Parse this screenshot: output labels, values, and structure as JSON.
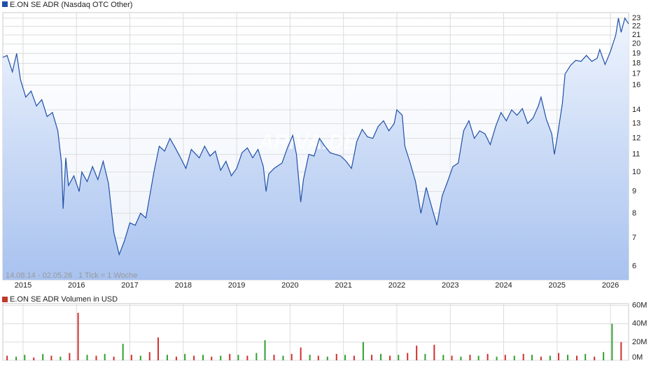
{
  "chart_data": [
    {
      "type": "line",
      "series": [
        {
          "name": "E.ON SE ADR (Nasdaq OTC Other)",
          "color": "#2050a8",
          "values": [
            18.6,
            18.8,
            17.2,
            19.0,
            16.5,
            15.0,
            15.5,
            14.3,
            14.8,
            13.5,
            13.8,
            12.5,
            10.5,
            8.2,
            10.8,
            9.3,
            9.8,
            9.0,
            10.0,
            9.5,
            10.3,
            9.6,
            10.6,
            9.4,
            7.2,
            6.4,
            6.9,
            7.6,
            7.5,
            8.0,
            7.8,
            10.0,
            11.5,
            11.2,
            12.0,
            11.4,
            10.8,
            10.2,
            11.3,
            10.8,
            11.5,
            10.9,
            11.2,
            10.1,
            10.6,
            9.8,
            10.2,
            11.1,
            11.4,
            10.8,
            11.3,
            10.3,
            9.0,
            9.9,
            10.2,
            10.5,
            11.4,
            12.2,
            11.0,
            8.5,
            9.6,
            11.0,
            10.9,
            12.0,
            11.5,
            11.1,
            11.0,
            10.9,
            10.6,
            10.2,
            11.8,
            12.6,
            12.1,
            12.0,
            12.8,
            13.2,
            12.5,
            13.0,
            14.0,
            13.6,
            11.5,
            10.5,
            9.5,
            8.0,
            9.2,
            8.3,
            7.5,
            8.8,
            9.5,
            10.3,
            10.5,
            12.5,
            13.2,
            12.0,
            12.5,
            12.3,
            11.6,
            12.8,
            13.8,
            13.2,
            14.0,
            13.6,
            14.1,
            13.0,
            13.4,
            14.3,
            15.0,
            13.3,
            12.3,
            11.0,
            12.0,
            14.5,
            17.0,
            17.8,
            18.3,
            18.2,
            18.8,
            18.2,
            18.5,
            19.4,
            17.9,
            19.2,
            21.0,
            23.0,
            21.3,
            23.0,
            22.3
          ]
        }
      ],
      "x": [
        2014.62,
        2014.7,
        2014.8,
        2014.88,
        2014.95,
        2015.05,
        2015.15,
        2015.25,
        2015.35,
        2015.45,
        2015.55,
        2015.65,
        2015.72,
        2015.75,
        2015.8,
        2015.85,
        2015.95,
        2016.05,
        2016.1,
        2016.2,
        2016.3,
        2016.4,
        2016.5,
        2016.6,
        2016.7,
        2016.8,
        2016.9,
        2017.0,
        2017.1,
        2017.2,
        2017.3,
        2017.45,
        2017.55,
        2017.65,
        2017.75,
        2017.85,
        2017.95,
        2018.05,
        2018.15,
        2018.3,
        2018.4,
        2018.5,
        2018.6,
        2018.7,
        2018.8,
        2018.9,
        2019.0,
        2019.1,
        2019.2,
        2019.3,
        2019.4,
        2019.5,
        2019.55,
        2019.6,
        2019.7,
        2019.85,
        2019.95,
        2020.05,
        2020.12,
        2020.2,
        2020.25,
        2020.35,
        2020.45,
        2020.55,
        2020.65,
        2020.75,
        2020.85,
        2020.95,
        2021.05,
        2021.15,
        2021.25,
        2021.35,
        2021.45,
        2021.55,
        2021.65,
        2021.75,
        2021.85,
        2021.95,
        2022.0,
        2022.1,
        2022.15,
        2022.25,
        2022.35,
        2022.45,
        2022.55,
        2022.65,
        2022.75,
        2022.85,
        2022.95,
        2023.05,
        2023.15,
        2023.25,
        2023.35,
        2023.45,
        2023.55,
        2023.65,
        2023.75,
        2023.85,
        2023.95,
        2024.05,
        2024.15,
        2024.25,
        2024.35,
        2024.45,
        2024.55,
        2024.65,
        2024.7,
        2024.8,
        2024.9,
        2024.95,
        2025.0,
        2025.1,
        2025.15,
        2025.25,
        2025.35,
        2025.45,
        2025.55,
        2025.65,
        2025.75,
        2025.8,
        2025.9,
        2026.0,
        2026.1,
        2026.15,
        2026.2,
        2026.27,
        2026.34
      ],
      "xlim": [
        2014.62,
        2026.34
      ],
      "xticks": [
        2015,
        2016,
        2017,
        2018,
        2019,
        2020,
        2021,
        2022,
        2023,
        2024,
        2025,
        2026
      ],
      "ylog": true,
      "ylim": [
        5.58,
        23.7
      ],
      "yticks": [
        6,
        7,
        8,
        9,
        10,
        11,
        12,
        13,
        14,
        16,
        17,
        18,
        19,
        20,
        21,
        22,
        23
      ],
      "grid": true,
      "annotations": [
        "14.08.14 - 02.05.26",
        "1 Tick = 1 Woche"
      ],
      "watermark": "ARIVA.DE"
    },
    {
      "type": "bar",
      "series": [
        {
          "name": "E.ON SE ADR Volumen in USD",
          "color": "#c0392b",
          "values": [
            5,
            4,
            6,
            3,
            7,
            5,
            4,
            8,
            52,
            6,
            5,
            7,
            4,
            18,
            6,
            5,
            9,
            25,
            6,
            4,
            7,
            5,
            6,
            4,
            5,
            7,
            6,
            5,
            8,
            22,
            6,
            5,
            7,
            14,
            6,
            5,
            4,
            7,
            6,
            5,
            20,
            6,
            7,
            5,
            6,
            8,
            16,
            7,
            17,
            6,
            5,
            4,
            6,
            5,
            7,
            4,
            6,
            5,
            7,
            6,
            4,
            5,
            8,
            6,
            5,
            7,
            4,
            9,
            40,
            20
          ],
          "colors": [
            "#d03030",
            "#30a030",
            "#30a030",
            "#d03030",
            "#30a030",
            "#d03030",
            "#30a030",
            "#d03030",
            "#d03030",
            "#30a030",
            "#d03030",
            "#30a030",
            "#d03030",
            "#30a030",
            "#d03030",
            "#30a030",
            "#d03030",
            "#d03030",
            "#30a030",
            "#d03030",
            "#30a030",
            "#d03030",
            "#30a030",
            "#d03030",
            "#30a030",
            "#d03030",
            "#30a030",
            "#d03030",
            "#30a030",
            "#30a030",
            "#d03030",
            "#30a030",
            "#d03030",
            "#d03030",
            "#30a030",
            "#d03030",
            "#30a030",
            "#d03030",
            "#30a030",
            "#d03030",
            "#30a030",
            "#d03030",
            "#30a030",
            "#d03030",
            "#30a030",
            "#d03030",
            "#d03030",
            "#30a030",
            "#d03030",
            "#30a030",
            "#d03030",
            "#30a030",
            "#d03030",
            "#30a030",
            "#d03030",
            "#30a030",
            "#d03030",
            "#30a030",
            "#d03030",
            "#30a030",
            "#d03030",
            "#30a030",
            "#d03030",
            "#30a030",
            "#d03030",
            "#30a030",
            "#d03030",
            "#30a030",
            "#30a030",
            "#d03030"
          ]
        }
      ],
      "x": [
        2014.7,
        2014.87,
        2015.03,
        2015.2,
        2015.37,
        2015.53,
        2015.7,
        2015.87,
        2016.03,
        2016.2,
        2016.37,
        2016.53,
        2016.7,
        2016.87,
        2017.03,
        2017.2,
        2017.37,
        2017.53,
        2017.7,
        2017.87,
        2018.03,
        2018.2,
        2018.37,
        2018.53,
        2018.7,
        2018.87,
        2019.03,
        2019.2,
        2019.37,
        2019.53,
        2019.7,
        2019.87,
        2020.03,
        2020.2,
        2020.37,
        2020.53,
        2020.7,
        2020.87,
        2021.03,
        2021.2,
        2021.37,
        2021.53,
        2021.7,
        2021.87,
        2022.03,
        2022.2,
        2022.37,
        2022.53,
        2022.7,
        2022.87,
        2023.03,
        2023.2,
        2023.37,
        2023.53,
        2023.7,
        2023.87,
        2024.03,
        2024.2,
        2024.37,
        2024.53,
        2024.7,
        2024.87,
        2025.03,
        2025.2,
        2025.37,
        2025.53,
        2025.7,
        2025.87,
        2026.03,
        2026.2
      ],
      "xlim": [
        2014.62,
        2026.34
      ],
      "ylim": [
        0,
        62
      ],
      "yticks": [
        {
          "value": 0,
          "label": "0M"
        },
        {
          "value": 20,
          "label": "20M"
        },
        {
          "value": 40,
          "label": "40M"
        },
        {
          "value": 60,
          "label": "60M"
        }
      ],
      "grid": true
    }
  ]
}
